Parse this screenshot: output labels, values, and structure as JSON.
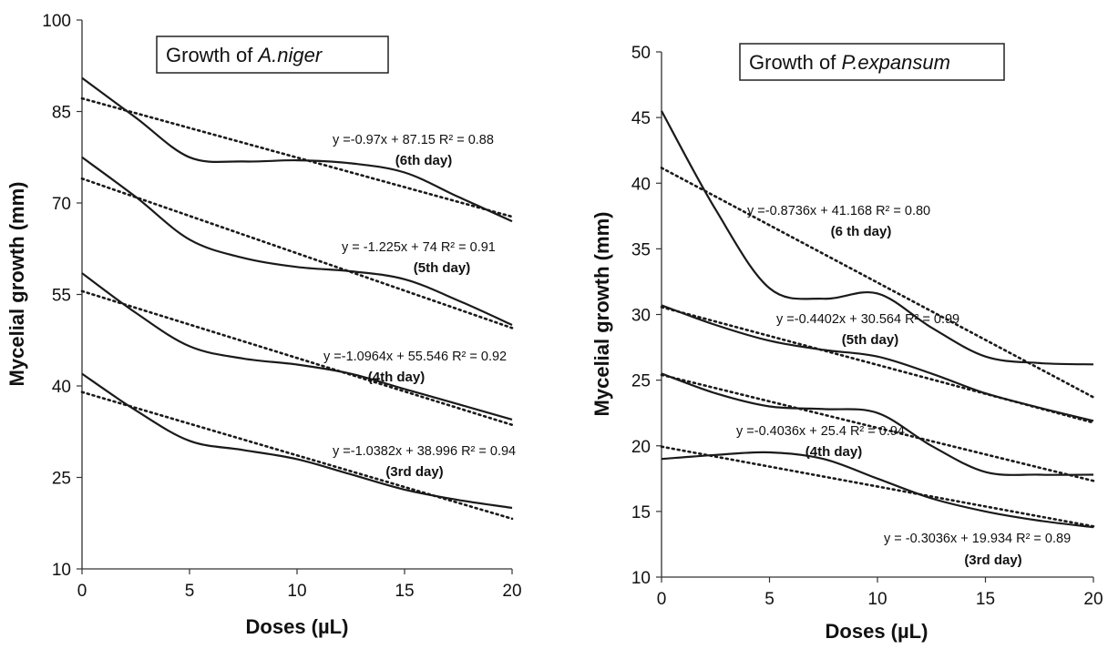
{
  "chart_data": [
    {
      "type": "line",
      "title": "Growth of A.niger",
      "title_prefix": "Growth of ",
      "title_organism": "A.niger",
      "xlabel": "Doses (µL)",
      "ylabel": "Mycelial growth (mm)",
      "xlim": [
        0,
        20
      ],
      "ylim": [
        10,
        100
      ],
      "xticks": [
        "0",
        "5",
        "10",
        "15",
        "20"
      ],
      "yticks": [
        "10",
        "25",
        "40",
        "55",
        "70",
        "85",
        "100"
      ],
      "grid": false,
      "series": [
        {
          "day_label": "(6th day)",
          "equation": "y =-0.97x + 87.15  R² = 0.88",
          "x": [
            0,
            2.5,
            5,
            7.5,
            10,
            12.5,
            15,
            17.5,
            20
          ],
          "y": [
            90.5,
            84,
            77.5,
            76.8,
            77,
            76.5,
            75,
            71,
            67
          ],
          "trend": {
            "slope": -0.97,
            "intercept": 87.15
          },
          "color": "#1a1a1a"
        },
        {
          "day_label": "(5th day)",
          "equation": "y = -1.225x + 74  R² = 0.91",
          "x": [
            0,
            2.5,
            5,
            7.5,
            10,
            12.5,
            15,
            17.5,
            20
          ],
          "y": [
            77.5,
            71,
            64,
            61,
            59.5,
            58.8,
            57.5,
            54,
            50
          ],
          "trend": {
            "slope": -1.225,
            "intercept": 74
          },
          "color": "#1a1a1a"
        },
        {
          "day_label": "(4th day)",
          "equation": "y =-1.0964x + 55.546  R² = 0.92",
          "x": [
            0,
            2.5,
            5,
            7.5,
            10,
            12.5,
            15,
            17.5,
            20
          ],
          "y": [
            58.5,
            52,
            46.5,
            44.5,
            43.5,
            42,
            39.5,
            37,
            34.5
          ],
          "trend": {
            "slope": -1.0964,
            "intercept": 55.546
          },
          "color": "#1a1a1a"
        },
        {
          "day_label": "(3rd day)",
          "equation": "y =-1.0382x + 38.996  R² = 0.94",
          "x": [
            0,
            2.5,
            5,
            7.5,
            10,
            12.5,
            15,
            17.5,
            20
          ],
          "y": [
            42,
            36,
            31,
            29.5,
            28,
            25.5,
            23,
            21.3,
            20
          ],
          "trend": {
            "slope": -1.0382,
            "intercept": 38.996
          },
          "color": "#1a1a1a"
        }
      ]
    },
    {
      "type": "line",
      "title": "Growth of P.expansum",
      "title_prefix": "Growth of ",
      "title_organism": "P.expansum",
      "xlabel": "Doses (µL)",
      "ylabel": "Mycelial growth (mm)",
      "xlim": [
        0,
        20
      ],
      "ylim": [
        10,
        50
      ],
      "xticks": [
        "0",
        "5",
        "10",
        "15",
        "20"
      ],
      "yticks": [
        "10",
        "15",
        "20",
        "25",
        "30",
        "35",
        "40",
        "45",
        "50"
      ],
      "grid": false,
      "series": [
        {
          "day_label": "(6 th day)",
          "equation": "y =-0.8736x + 41.168  R² = 0.80",
          "x": [
            0,
            2.5,
            5,
            7.5,
            10,
            12.5,
            15,
            17.5,
            20
          ],
          "y": [
            45.5,
            38,
            32,
            31.2,
            31.6,
            29,
            26.8,
            26.3,
            26.2
          ],
          "trend": {
            "slope": -0.8736,
            "intercept": 41.168
          },
          "color": "#1a1a1a"
        },
        {
          "day_label": "(5th day)",
          "equation": "y =-0.4402x + 30.564  R² = 0.99",
          "x": [
            0,
            2.5,
            5,
            7.5,
            10,
            12.5,
            15,
            17.5,
            20
          ],
          "y": [
            30.7,
            29.2,
            28,
            27.3,
            26.8,
            25.5,
            24,
            22.9,
            21.9
          ],
          "trend": {
            "slope": -0.4402,
            "intercept": 30.564
          },
          "color": "#1a1a1a"
        },
        {
          "day_label": "(4th day)",
          "equation": "y =-0.4036x + 25.4  R² = 0.94",
          "x": [
            0,
            2.5,
            5,
            7.5,
            10,
            12.5,
            15,
            17.5,
            20
          ],
          "y": [
            25.5,
            24,
            23,
            22.8,
            22.5,
            20,
            18,
            17.8,
            17.8
          ],
          "trend": {
            "slope": -0.4036,
            "intercept": 25.4
          },
          "color": "#1a1a1a"
        },
        {
          "day_label": "(3rd day)",
          "equation": "y = -0.3036x + 19.934  R² = 0.89",
          "x": [
            0,
            2.5,
            5,
            7.5,
            10,
            12.5,
            15,
            17.5,
            20
          ],
          "y": [
            19,
            19.3,
            19.5,
            19,
            17.5,
            16,
            15,
            14.3,
            13.8
          ],
          "trend": {
            "slope": -0.3036,
            "intercept": 19.934
          },
          "color": "#1a1a1a"
        }
      ]
    }
  ]
}
